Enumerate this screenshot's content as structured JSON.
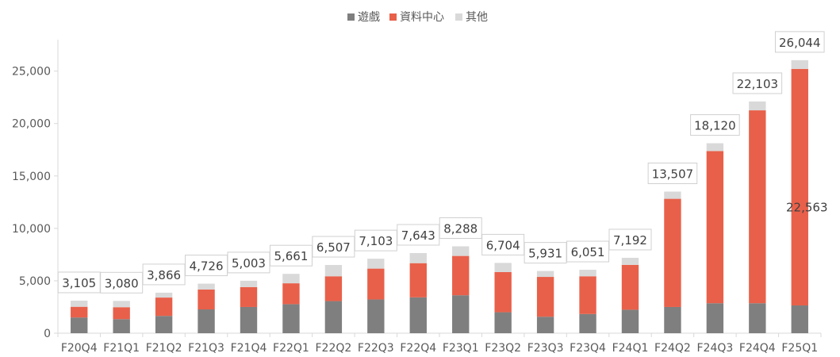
{
  "chart_data": {
    "type": "bar",
    "stacked": true,
    "categories": [
      "F20Q4",
      "F21Q1",
      "F21Q2",
      "F21Q3",
      "F21Q4",
      "F22Q1",
      "F22Q2",
      "F22Q3",
      "F22Q4",
      "F23Q1",
      "F23Q2",
      "F23Q3",
      "F23Q4",
      "F24Q1",
      "F24Q2",
      "F24Q3",
      "F24Q4",
      "F25Q1"
    ],
    "series": [
      {
        "name": "遊戲",
        "color": "#7f7f7f",
        "values": [
          1500,
          1340,
          1650,
          2270,
          2500,
          2770,
          3060,
          3220,
          3420,
          3620,
          2000,
          1570,
          1830,
          2240,
          2500,
          2860,
          2860,
          2650
        ]
      },
      {
        "name": "資料中心",
        "color": "#e8604a",
        "values": [
          1020,
          1140,
          1750,
          1900,
          1900,
          1990,
          2370,
          2940,
          3260,
          3750,
          3830,
          3800,
          3600,
          4280,
          10320,
          14510,
          18400,
          22563
        ]
      },
      {
        "name": "其他",
        "color": "#d9d9d9",
        "values": [
          585,
          600,
          466,
          556,
          603,
          901,
          1077,
          943,
          963,
          918,
          874,
          561,
          621,
          672,
          687,
          750,
          843,
          831
        ]
      }
    ],
    "totals": [
      3105,
      3080,
      3866,
      4726,
      5003,
      5661,
      6507,
      7103,
      7643,
      8288,
      6704,
      5931,
      6051,
      7192,
      13507,
      18120,
      22103,
      26044
    ],
    "total_labels": [
      "3,105",
      "3,080",
      "3,866",
      "4,726",
      "5,003",
      "5,661",
      "6,507",
      "7,103",
      "7,643",
      "8,288",
      "6,704",
      "5,931",
      "6,051",
      "7,192",
      "13,507",
      "18,120",
      "22,103",
      "26,044"
    ],
    "annotation": {
      "category": "F25Q1",
      "series": "資料中心",
      "text": "22,563"
    },
    "y_ticks": [
      0,
      5000,
      10000,
      15000,
      20000,
      25000
    ],
    "y_tick_labels": [
      "0",
      "5,000",
      "10,000",
      "15,000",
      "20,000",
      "25,000"
    ],
    "ylim": [
      0,
      28000
    ],
    "legend_position": "top-center",
    "grid": false
  }
}
